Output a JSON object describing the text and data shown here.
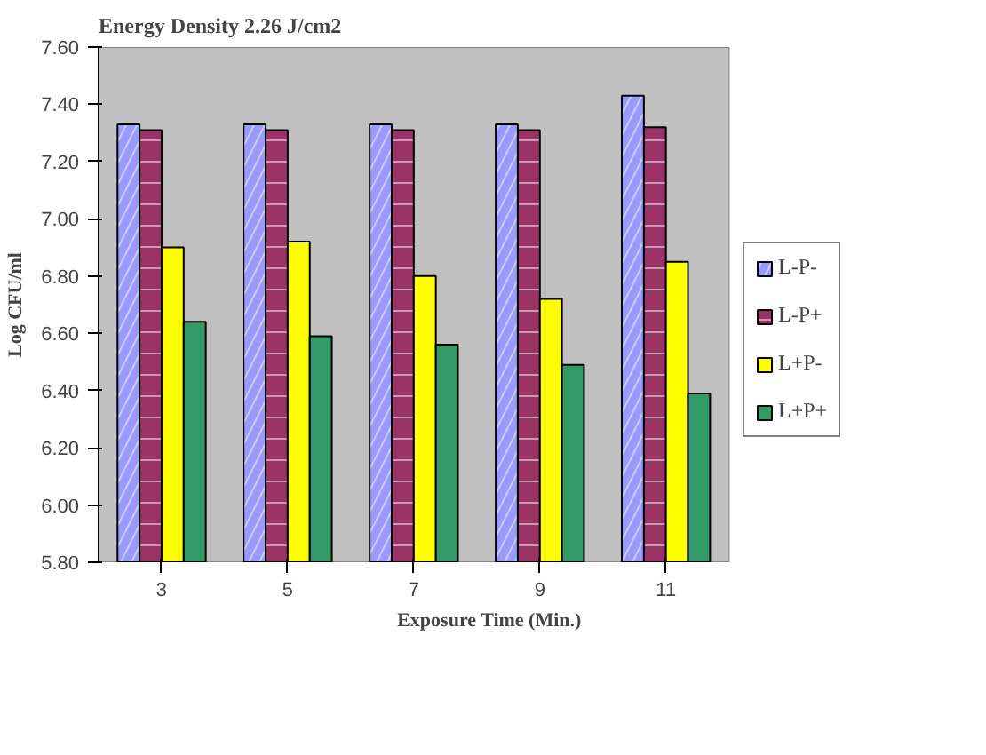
{
  "chart_data": {
    "type": "bar",
    "title": "Energy Density 2.26 J/cm2",
    "xlabel": "Exposure Time (Min.)",
    "ylabel": "Log CFU/ml",
    "categories": [
      "3",
      "5",
      "7",
      "9",
      "11"
    ],
    "series": [
      {
        "name": "L-P-",
        "color": "#9999ff",
        "values": [
          7.33,
          7.33,
          7.33,
          7.33,
          7.43
        ]
      },
      {
        "name": "L-P+",
        "color": "#993366",
        "values": [
          7.31,
          7.31,
          7.31,
          7.31,
          7.32
        ]
      },
      {
        "name": "L+P-",
        "color": "#ffff00",
        "values": [
          6.9,
          6.92,
          6.8,
          6.72,
          6.85
        ]
      },
      {
        "name": "L+P+",
        "color": "#339966",
        "values": [
          6.64,
          6.59,
          6.56,
          6.49,
          6.39
        ]
      }
    ],
    "ylim": [
      5.8,
      7.6
    ],
    "yticks": [
      {
        "value": 5.8,
        "label": "5.80"
      },
      {
        "value": 6.0,
        "label": "6.00"
      },
      {
        "value": 6.2,
        "label": "6.20"
      },
      {
        "value": 6.4,
        "label": "6.40"
      },
      {
        "value": 6.6,
        "label": "6.60"
      },
      {
        "value": 6.8,
        "label": "6.80"
      },
      {
        "value": 7.0,
        "label": "7.00"
      },
      {
        "value": 7.2,
        "label": "7.20"
      },
      {
        "value": 7.4,
        "label": "7.40"
      },
      {
        "value": 7.6,
        "label": "7.60"
      }
    ],
    "legend": "right"
  }
}
